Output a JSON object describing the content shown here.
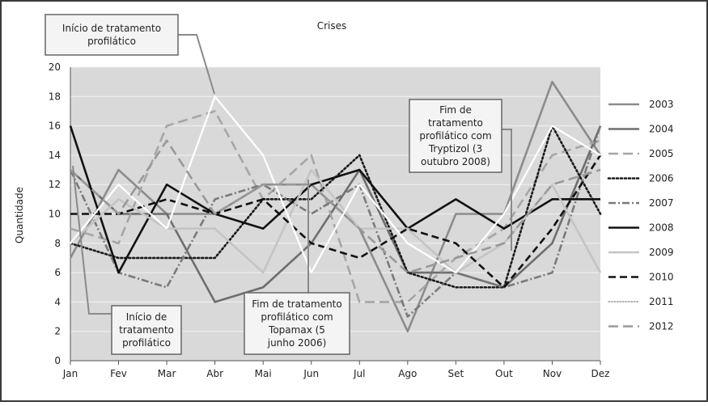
{
  "chart_data": {
    "type": "line",
    "title": "Crises",
    "ylabel": "Quantidade",
    "xlabel": "",
    "ylim": [
      0,
      20
    ],
    "ytick_step": 2,
    "grid": true,
    "legend_position": "right",
    "categories": [
      "Jan",
      "Fev",
      "Mar",
      "Abr",
      "Mai",
      "Jun",
      "Jul",
      "Ago",
      "Set",
      "Out",
      "Nov",
      "Dez"
    ],
    "series": [
      {
        "name": "2003",
        "color": "#8c8c8c",
        "dash": "solid",
        "values": [
          7,
          13,
          10,
          10,
          12,
          12,
          9,
          2,
          10,
          10,
          19,
          14
        ]
      },
      {
        "name": "2004",
        "color": "#6e6e6e",
        "dash": "solid",
        "values": [
          13,
          10,
          10,
          4,
          5,
          8,
          13,
          6,
          6,
          5,
          8,
          16
        ]
      },
      {
        "name": "2005",
        "color": "#a6a6a6",
        "dash": "longdash",
        "values": [
          9,
          8,
          16,
          17,
          11,
          14,
          4,
          4,
          7,
          9,
          14,
          15
        ]
      },
      {
        "name": "2006",
        "color": "#1a1a1a",
        "dash": "dot",
        "values": [
          8,
          7,
          7,
          7,
          11,
          11,
          14,
          6,
          5,
          5,
          16,
          10
        ]
      },
      {
        "name": "2007",
        "color": "#7a7a7a",
        "dash": "dashdot",
        "values": [
          13,
          6,
          5,
          11,
          12,
          10,
          12,
          3,
          6,
          5,
          6,
          16
        ]
      },
      {
        "name": "2008",
        "color": "#111111",
        "dash": "solid",
        "values": [
          16,
          6,
          12,
          10,
          9,
          12,
          13,
          9,
          11,
          9,
          11,
          11
        ]
      },
      {
        "name": "2009",
        "color": "#c4c4c4",
        "dash": "solid",
        "values": [
          8,
          11,
          9,
          9,
          6,
          13,
          9,
          9,
          6,
          8,
          12,
          6
        ]
      },
      {
        "name": "2010",
        "color": "#111111",
        "dash": "dash",
        "values": [
          10,
          10,
          11,
          10,
          11,
          8,
          7,
          9,
          8,
          5,
          9,
          14
        ]
      },
      {
        "name": "2011",
        "color": "#ffffff",
        "dash": "whitedot",
        "values": [
          8,
          12,
          9,
          18,
          14,
          6,
          12,
          8,
          6,
          10,
          16,
          14
        ]
      },
      {
        "name": "2012",
        "color": "#999999",
        "dash": "longdash",
        "values": [
          13,
          10,
          15,
          10,
          12,
          12,
          9,
          6,
          7,
          8,
          12,
          13
        ]
      }
    ],
    "annotations": [
      {
        "id": "ann1",
        "text": [
          "Início de tratamento",
          "profilático"
        ]
      },
      {
        "id": "ann2",
        "text": [
          "Início de",
          "tratamento",
          "profilático"
        ]
      },
      {
        "id": "ann3",
        "text": [
          "Fim de tratamento",
          "profilático com",
          "Topamax (5",
          "junho 2006)"
        ]
      },
      {
        "id": "ann4",
        "text": [
          "Fim de",
          "tratamento",
          "profilático com",
          "Tryptizol (3",
          "outubro 2008)"
        ]
      }
    ]
  }
}
